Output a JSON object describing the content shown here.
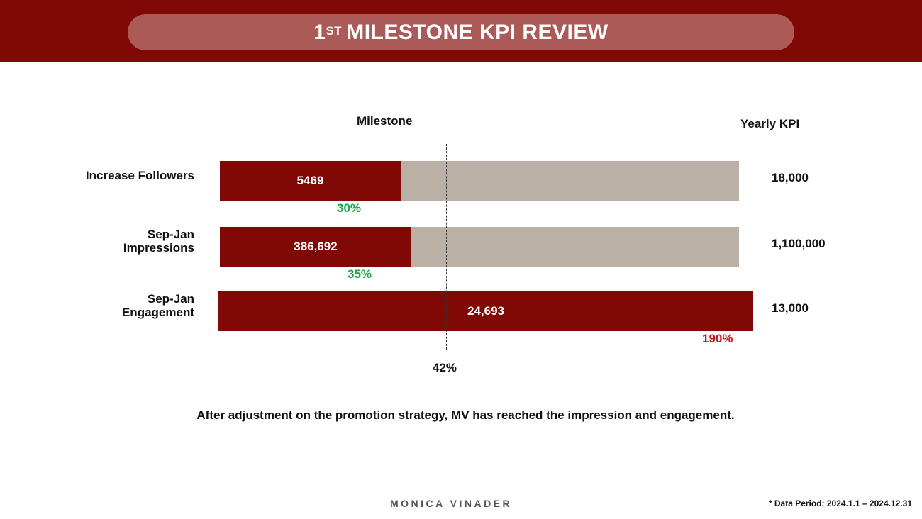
{
  "header": {
    "title_prefix": "1",
    "title_sup": "ST",
    "title": "MILESTONE KPI REVIEW"
  },
  "chart_data": {
    "type": "bar",
    "orientation": "horizontal",
    "column_headers": {
      "milestone": "Milestone",
      "yearly_kpi": "Yearly KPI"
    },
    "categories": [
      "Increase Followers",
      "Sep-Jan Impressions",
      "Sep-Jan Engagement"
    ],
    "category_lines": [
      [
        "Increase Followers"
      ],
      [
        "Sep-Jan",
        "Impressions"
      ],
      [
        "Sep-Jan",
        "Engagement"
      ]
    ],
    "values": [
      "5469",
      "386,692",
      "24,693"
    ],
    "kpis": [
      "18,000",
      "1,100,000",
      "13,000"
    ],
    "percents": [
      30,
      35,
      190
    ],
    "percent_labels": [
      "30%",
      "35%",
      "190%"
    ],
    "milestone_marker": 42,
    "milestone_label": "42%"
  },
  "colors": {
    "brand": "#800805",
    "track": "#bab0a5",
    "below": "#1aa64a",
    "above": "#c0161a"
  },
  "note": "After adjustment on the promotion strategy, MV has reached the impression and engagement.",
  "footer": {
    "logo": "MONICA VINADER",
    "period": "* Data Period: 2024.1.1 – 2024.12.31"
  }
}
